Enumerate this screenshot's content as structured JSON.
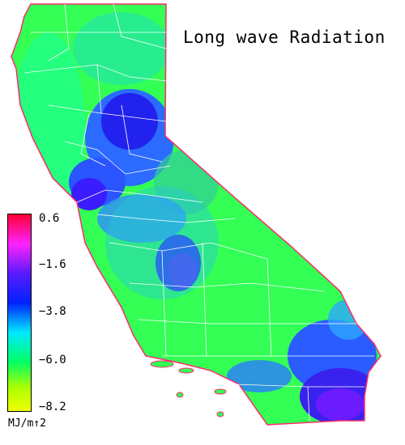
{
  "title": "Long wave Radiation",
  "units": "MJ/m↑2",
  "colorbar": {
    "ticks": [
      "0.6",
      "−1.6",
      "−3.8",
      "−6.0",
      "−8.2"
    ],
    "stops": [
      "#ff0033",
      "#ff22ff",
      "#5a1aff",
      "#0022ff",
      "#00e8ff",
      "#00ff66",
      "#aaff00",
      "#f0ff00"
    ]
  },
  "colors": {
    "low_region": "#33ff55",
    "coast": "#00ff9a",
    "mid": "#2ea6ff",
    "high": "#2020ee",
    "very_high": "#7a1cff",
    "border": "#ffffff"
  }
}
